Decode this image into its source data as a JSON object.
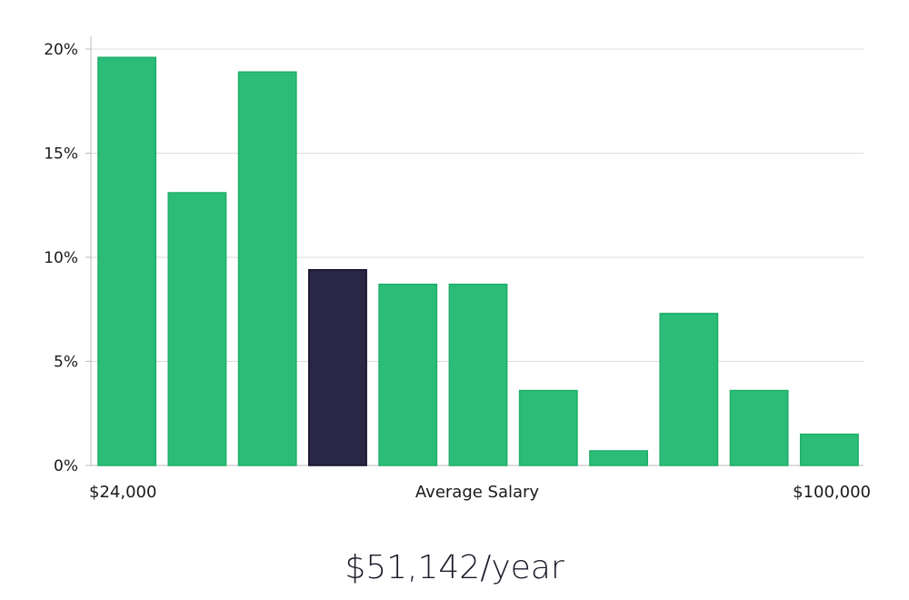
{
  "chart_data": {
    "type": "bar",
    "title": "",
    "xlabel": "Average Salary",
    "ylabel": "",
    "x_range_labels": {
      "min": "$24,000",
      "max": "$100,000"
    },
    "ylim": [
      0,
      20
    ],
    "yticks": [
      0,
      5,
      10,
      15,
      20
    ],
    "ytick_labels": [
      "0%",
      "5%",
      "10%",
      "15%",
      "20%"
    ],
    "grid": true,
    "values": [
      19.6,
      13.1,
      18.9,
      9.4,
      8.7,
      8.7,
      3.6,
      0.7,
      7.3,
      3.6,
      1.5
    ],
    "highlight_index": 3,
    "colors": {
      "bar": "#2bbd78",
      "bar_edge": "#1fae68",
      "highlight": "#2a2645",
      "highlight_edge": "#15122e",
      "grid": "#dcdcdc",
      "axis": "#bdbdbd",
      "text": "#1a1a1a"
    }
  },
  "salary_label": "$51,142/year"
}
